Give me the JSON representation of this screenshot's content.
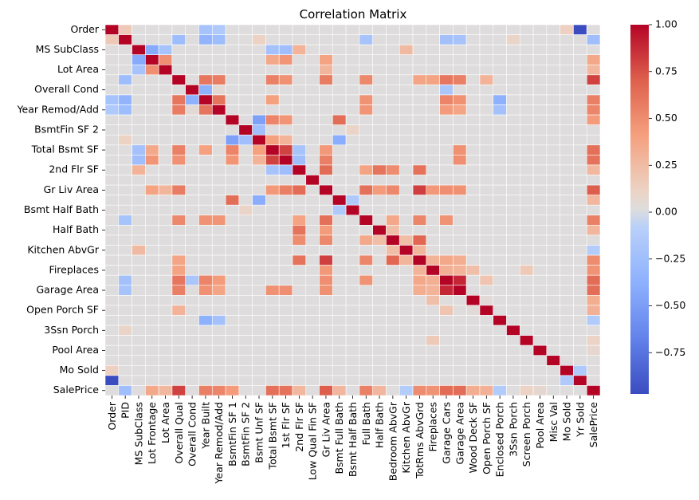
{
  "chart_data": {
    "type": "heatmap",
    "title": "Correlation Matrix",
    "variables": [
      "Order",
      "PID",
      "MS SubClass",
      "Lot Frontage",
      "Lot Area",
      "Overall Qual",
      "Overall Cond",
      "Year Built",
      "Year Remod/Add",
      "BsmtFin SF 1",
      "BsmtFin SF 2",
      "Bsmt Unf SF",
      "Total Bsmt SF",
      "1st Flr SF",
      "2nd Flr SF",
      "Low Qual Fin SF",
      "Gr Liv Area",
      "Bsmt Full Bath",
      "Bsmt Half Bath",
      "Full Bath",
      "Half Bath",
      "Bedroom AbvGr",
      "Kitchen AbvGr",
      "TotRms AbvGrd",
      "Fireplaces",
      "Garage Cars",
      "Garage Area",
      "Wood Deck SF",
      "Open Porch SF",
      "Enclosed Porch",
      "3Ssn Porch",
      "Screen Porch",
      "Pool Area",
      "Misc Val",
      "Mo Sold",
      "Yr Sold",
      "SalePrice"
    ],
    "y_tick_labels": [
      "Order",
      "MS SubClass",
      "Lot Area",
      "Overall Cond",
      "Year Remod/Add",
      "BsmtFin SF 2",
      "Total Bsmt SF",
      "2nd Flr SF",
      "Gr Liv Area",
      "Bsmt Half Bath",
      "Half Bath",
      "Kitchen AbvGr",
      "Fireplaces",
      "Garage Area",
      "Open Porch SF",
      "3Ssn Porch",
      "Pool Area",
      "Mo Sold",
      "SalePrice"
    ],
    "colorbar": {
      "range": [
        -0.97,
        1.0
      ],
      "ticks": [
        1.0,
        0.75,
        0.5,
        0.25,
        0.0,
        -0.25,
        -0.5,
        -0.75
      ],
      "tick_labels": [
        "1.00",
        "0.75",
        "0.50",
        "0.25",
        "0.00",
        "−0.25",
        "−0.50",
        "−0.75"
      ],
      "colormap": "coolwarm"
    },
    "correlations": [
      {
        "pair": [
          "Order",
          "Yr Sold"
        ],
        "value": -0.97
      },
      {
        "pair": [
          "Order",
          "PID"
        ],
        "value": 0.17
      },
      {
        "pair": [
          "Order",
          "Mo Sold"
        ],
        "value": 0.13
      },
      {
        "pair": [
          "Order",
          "Year Built"
        ],
        "value": -0.2
      },
      {
        "pair": [
          "Order",
          "Year Remod/Add"
        ],
        "value": -0.15
      },
      {
        "pair": [
          "PID",
          "Year Built"
        ],
        "value": -0.34
      },
      {
        "pair": [
          "PID",
          "Year Remod/Add"
        ],
        "value": -0.26
      },
      {
        "pair": [
          "PID",
          "Overall Qual"
        ],
        "value": -0.26
      },
      {
        "pair": [
          "PID",
          "Full Bath"
        ],
        "value": -0.2
      },
      {
        "pair": [
          "PID",
          "Garage Cars"
        ],
        "value": -0.23
      },
      {
        "pair": [
          "PID",
          "Garage Area"
        ],
        "value": -0.2
      },
      {
        "pair": [
          "PID",
          "SalePrice"
        ],
        "value": -0.25
      },
      {
        "pair": [
          "PID",
          "3Ssn Porch"
        ],
        "value": 0.1
      },
      {
        "pair": [
          "PID",
          "Bsmt Unf SF"
        ],
        "value": 0.12
      },
      {
        "pair": [
          "MS SubClass",
          "Lot Frontage"
        ],
        "value": -0.42
      },
      {
        "pair": [
          "MS SubClass",
          "Lot Area"
        ],
        "value": -0.2
      },
      {
        "pair": [
          "MS SubClass",
          "2nd Flr SF"
        ],
        "value": 0.3
      },
      {
        "pair": [
          "MS SubClass",
          "Kitchen AbvGr"
        ],
        "value": 0.26
      },
      {
        "pair": [
          "MS SubClass",
          "Total Bsmt SF"
        ],
        "value": -0.22
      },
      {
        "pair": [
          "MS SubClass",
          "1st Flr SF"
        ],
        "value": -0.25
      },
      {
        "pair": [
          "Lot Frontage",
          "Lot Area"
        ],
        "value": 0.49
      },
      {
        "pair": [
          "Lot Frontage",
          "1st Flr SF"
        ],
        "value": 0.46
      },
      {
        "pair": [
          "Lot Frontage",
          "Gr Liv Area"
        ],
        "value": 0.39
      },
      {
        "pair": [
          "Lot Frontage",
          "Total Bsmt SF"
        ],
        "value": 0.36
      },
      {
        "pair": [
          "Lot Frontage",
          "SalePrice"
        ],
        "value": 0.36
      },
      {
        "pair": [
          "Lot Area",
          "SalePrice"
        ],
        "value": 0.27
      },
      {
        "pair": [
          "Lot Area",
          "Gr Liv Area"
        ],
        "value": 0.29
      },
      {
        "pair": [
          "Overall Qual",
          "SalePrice"
        ],
        "value": 0.8
      },
      {
        "pair": [
          "Overall Qual",
          "Year Built"
        ],
        "value": 0.6
      },
      {
        "pair": [
          "Overall Qual",
          "Year Remod/Add"
        ],
        "value": 0.57
      },
      {
        "pair": [
          "Overall Qual",
          "Total Bsmt SF"
        ],
        "value": 0.55
      },
      {
        "pair": [
          "Overall Qual",
          "1st Flr SF"
        ],
        "value": 0.48
      },
      {
        "pair": [
          "Overall Qual",
          "Gr Liv Area"
        ],
        "value": 0.57
      },
      {
        "pair": [
          "Overall Qual",
          "Full Bath"
        ],
        "value": 0.52
      },
      {
        "pair": [
          "Overall Qual",
          "Garage Cars"
        ],
        "value": 0.6
      },
      {
        "pair": [
          "Overall Qual",
          "Garage Area"
        ],
        "value": 0.56
      },
      {
        "pair": [
          "Overall Qual",
          "TotRms AbvGrd"
        ],
        "value": 0.38
      },
      {
        "pair": [
          "Overall Qual",
          "Fireplaces"
        ],
        "value": 0.39
      },
      {
        "pair": [
          "Overall Qual",
          "Open Porch SF"
        ],
        "value": 0.3
      },
      {
        "pair": [
          "Overall Cond",
          "Year Built"
        ],
        "value": -0.37
      },
      {
        "pair": [
          "Overall Cond",
          "Year Remod/Add"
        ],
        "value": 0.05
      },
      {
        "pair": [
          "Overall Cond",
          "Garage Cars"
        ],
        "value": -0.18
      },
      {
        "pair": [
          "Year Built",
          "Year Remod/Add"
        ],
        "value": 0.61
      },
      {
        "pair": [
          "Year Built",
          "Garage Cars"
        ],
        "value": 0.54
      },
      {
        "pair": [
          "Year Built",
          "Garage Area"
        ],
        "value": 0.48
      },
      {
        "pair": [
          "Year Built",
          "Full Bath"
        ],
        "value": 0.47
      },
      {
        "pair": [
          "Year Built",
          "SalePrice"
        ],
        "value": 0.56
      },
      {
        "pair": [
          "Year Built",
          "Enclosed Porch"
        ],
        "value": -0.37
      },
      {
        "pair": [
          "Year Built",
          "Total Bsmt SF"
        ],
        "value": 0.41
      },
      {
        "pair": [
          "Year Remod/Add",
          "SalePrice"
        ],
        "value": 0.53
      },
      {
        "pair": [
          "Year Remod/Add",
          "Garage Cars"
        ],
        "value": 0.43
      },
      {
        "pair": [
          "Year Remod/Add",
          "Garage Area"
        ],
        "value": 0.38
      },
      {
        "pair": [
          "Year Remod/Add",
          "Full Bath"
        ],
        "value": 0.46
      },
      {
        "pair": [
          "BsmtFin SF 1",
          "Bsmt Unf SF"
        ],
        "value": -0.48
      },
      {
        "pair": [
          "BsmtFin SF 1",
          "Bsmt Full Bath"
        ],
        "value": 0.64
      },
      {
        "pair": [
          "BsmtFin SF 1",
          "Total Bsmt SF"
        ],
        "value": 0.54
      },
      {
        "pair": [
          "BsmtFin SF 1",
          "1st Flr SF"
        ],
        "value": 0.46
      },
      {
        "pair": [
          "BsmtFin SF 1",
          "SalePrice"
        ],
        "value": 0.43
      },
      {
        "pair": [
          "BsmtFin SF 2",
          "Bsmt Unf SF"
        ],
        "value": -0.24
      },
      {
        "pair": [
          "BsmtFin SF 2",
          "Bsmt Half Bath"
        ],
        "value": 0.1
      },
      {
        "pair": [
          "Bsmt Unf SF",
          "Total Bsmt SF"
        ],
        "value": 0.41
      },
      {
        "pair": [
          "Bsmt Unf SF",
          "Bsmt Full Bath"
        ],
        "value": -0.4
      },
      {
        "pair": [
          "Bsmt Unf SF",
          "1st Flr SF"
        ],
        "value": 0.3
      },
      {
        "pair": [
          "Total Bsmt SF",
          "1st Flr SF"
        ],
        "value": 0.8
      },
      {
        "pair": [
          "Total Bsmt SF",
          "SalePrice"
        ],
        "value": 0.63
      },
      {
        "pair": [
          "Total Bsmt SF",
          "Gr Liv Area"
        ],
        "value": 0.44
      },
      {
        "pair": [
          "Total Bsmt SF",
          "Garage Area"
        ],
        "value": 0.48
      },
      {
        "pair": [
          "Total Bsmt SF",
          "2nd Flr SF"
        ],
        "value": -0.2
      },
      {
        "pair": [
          "1st Flr SF",
          "SalePrice"
        ],
        "value": 0.62
      },
      {
        "pair": [
          "1st Flr SF",
          "Gr Liv Area"
        ],
        "value": 0.56
      },
      {
        "pair": [
          "1st Flr SF",
          "2nd Flr SF"
        ],
        "value": -0.25
      },
      {
        "pair": [
          "1st Flr SF",
          "Garage Area"
        ],
        "value": 0.49
      },
      {
        "pair": [
          "2nd Flr SF",
          "Gr Liv Area"
        ],
        "value": 0.65
      },
      {
        "pair": [
          "2nd Flr SF",
          "Half Bath"
        ],
        "value": 0.61
      },
      {
        "pair": [
          "2nd Flr SF",
          "Bedroom AbvGr"
        ],
        "value": 0.5
      },
      {
        "pair": [
          "2nd Flr SF",
          "TotRms AbvGrd"
        ],
        "value": 0.62
      },
      {
        "pair": [
          "2nd Flr SF",
          "Full Bath"
        ],
        "value": 0.39
      },
      {
        "pair": [
          "2nd Flr SF",
          "SalePrice"
        ],
        "value": 0.27
      },
      {
        "pair": [
          "Gr Liv Area",
          "TotRms AbvGrd"
        ],
        "value": 0.81
      },
      {
        "pair": [
          "Gr Liv Area",
          "SalePrice"
        ],
        "value": 0.71
      },
      {
        "pair": [
          "Gr Liv Area",
          "Full Bath"
        ],
        "value": 0.63
      },
      {
        "pair": [
          "Gr Liv Area",
          "Bedroom AbvGr"
        ],
        "value": 0.52
      },
      {
        "pair": [
          "Gr Liv Area",
          "Fireplaces"
        ],
        "value": 0.45
      },
      {
        "pair": [
          "Gr Liv Area",
          "Garage Cars"
        ],
        "value": 0.49
      },
      {
        "pair": [
          "Gr Liv Area",
          "Garage Area"
        ],
        "value": 0.48
      },
      {
        "pair": [
          "Gr Liv Area",
          "Half Bath"
        ],
        "value": 0.43
      },
      {
        "pair": [
          "Bsmt Full Bath",
          "Bsmt Half Bath"
        ],
        "value": -0.15
      },
      {
        "pair": [
          "Bsmt Full Bath",
          "SalePrice"
        ],
        "value": 0.28
      },
      {
        "pair": [
          "Full Bath",
          "TotRms AbvGrd"
        ],
        "value": 0.53
      },
      {
        "pair": [
          "Full Bath",
          "SalePrice"
        ],
        "value": 0.55
      },
      {
        "pair": [
          "Full Bath",
          "Garage Cars"
        ],
        "value": 0.47
      },
      {
        "pair": [
          "Full Bath",
          "Bedroom AbvGr"
        ],
        "value": 0.36
      },
      {
        "pair": [
          "Half Bath",
          "Bedroom AbvGr"
        ],
        "value": 0.24
      },
      {
        "pair": [
          "Half Bath",
          "SalePrice"
        ],
        "value": 0.28
      },
      {
        "pair": [
          "Bedroom AbvGr",
          "TotRms AbvGrd"
        ],
        "value": 0.67
      },
      {
        "pair": [
          "Bedroom AbvGr",
          "Kitchen AbvGr"
        ],
        "value": 0.24
      },
      {
        "pair": [
          "Kitchen AbvGr",
          "TotRms AbvGrd"
        ],
        "value": 0.29
      },
      {
        "pair": [
          "Kitchen AbvGr",
          "SalePrice"
        ],
        "value": -0.12
      },
      {
        "pair": [
          "TotRms AbvGrd",
          "SalePrice"
        ],
        "value": 0.5
      },
      {
        "pair": [
          "TotRms AbvGrd",
          "Fireplaces"
        ],
        "value": 0.3
      },
      {
        "pair": [
          "TotRms AbvGrd",
          "Garage Cars"
        ],
        "value": 0.36
      },
      {
        "pair": [
          "TotRms AbvGrd",
          "Garage Area"
        ],
        "value": 0.33
      },
      {
        "pair": [
          "Fireplaces",
          "SalePrice"
        ],
        "value": 0.47
      },
      {
        "pair": [
          "Fireplaces",
          "Garage Cars"
        ],
        "value": 0.32
      },
      {
        "pair": [
          "Fireplaces",
          "Garage Area"
        ],
        "value": 0.3
      },
      {
        "pair": [
          "Fireplaces",
          "Wood Deck SF"
        ],
        "value": 0.23
      },
      {
        "pair": [
          "Garage Cars",
          "Garage Area"
        ],
        "value": 0.89
      },
      {
        "pair": [
          "Garage Cars",
          "SalePrice"
        ],
        "value": 0.65
      },
      {
        "pair": [
          "Garage Area",
          "SalePrice"
        ],
        "value": 0.64
      },
      {
        "pair": [
          "Garage Cars",
          "Open Porch SF"
        ],
        "value": 0.2
      },
      {
        "pair": [
          "Wood Deck SF",
          "SalePrice"
        ],
        "value": 0.33
      },
      {
        "pair": [
          "Wood Deck SF",
          "Open Porch SF"
        ],
        "value": 0.04
      },
      {
        "pair": [
          "Open Porch SF",
          "SalePrice"
        ],
        "value": 0.31
      },
      {
        "pair": [
          "Enclosed Porch",
          "SalePrice"
        ],
        "value": -0.13
      },
      {
        "pair": [
          "Enclosed Porch",
          "Year Remod/Add"
        ],
        "value": -0.22
      },
      {
        "pair": [
          "Screen Porch",
          "SalePrice"
        ],
        "value": 0.11
      },
      {
        "pair": [
          "Screen Porch",
          "Fireplaces"
        ],
        "value": 0.17
      },
      {
        "pair": [
          "Pool Area",
          "SalePrice"
        ],
        "value": 0.07
      },
      {
        "pair": [
          "Mo Sold",
          "Yr Sold"
        ],
        "value": -0.15
      }
    ]
  }
}
